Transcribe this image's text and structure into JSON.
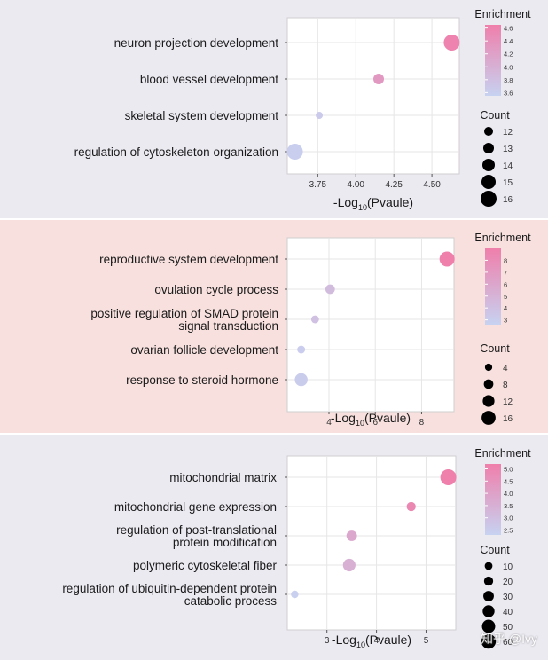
{
  "chart_data": [
    {
      "type": "scatter",
      "xlabel_prefix": "-Log",
      "xlabel_sub": "10",
      "xlabel_suffix": "(Pvaule)",
      "xlim": [
        3.55,
        4.68
      ],
      "xticks": [
        3.75,
        4.0,
        4.25,
        4.5
      ],
      "xtick_labels": [
        "3.75",
        "4.00",
        "4.25",
        "4.50"
      ],
      "terms": [
        [
          "neuron projection development"
        ],
        [
          "blood vessel development"
        ],
        [
          "skeletal system development"
        ],
        [
          "regulation of cytoskeleton organization"
        ]
      ],
      "points": [
        {
          "x": 4.63,
          "enrichment": 4.6,
          "count": 16
        },
        {
          "x": 4.15,
          "enrichment": 4.3,
          "count": 13
        },
        {
          "x": 3.76,
          "enrichment": 3.65,
          "count": 11
        },
        {
          "x": 3.6,
          "enrichment": 3.6,
          "count": 16
        }
      ],
      "legend": {
        "color_title": "Enrichment",
        "color_min": 3.55,
        "color_max": 4.65,
        "color_ticks": [
          3.6,
          3.8,
          4.0,
          4.2,
          4.4,
          4.6
        ],
        "color_tick_labels": [
          "3.6",
          "3.8",
          "4.0",
          "4.2",
          "4.4",
          "4.6"
        ],
        "size_title": "Count",
        "size_values": [
          12,
          13,
          14,
          15,
          16
        ],
        "size_labels": [
          "12",
          "13",
          "14",
          "15",
          "16"
        ],
        "size_min": 11,
        "size_max": 16
      }
    },
    {
      "type": "scatter",
      "xlabel_prefix": "-Log",
      "xlabel_sub": "10",
      "xlabel_suffix": "(Pvaule)",
      "xlim": [
        2.2,
        9.4
      ],
      "xticks": [
        4,
        6,
        8
      ],
      "xtick_labels": [
        "4",
        "6",
        "8"
      ],
      "terms": [
        [
          "reproductive system development"
        ],
        [
          "ovulation cycle process"
        ],
        [
          "positive regulation of SMAD protein",
          "signal transduction"
        ],
        [
          "ovarian follicle development"
        ],
        [
          "response to steroid hormone"
        ]
      ],
      "points": [
        {
          "x": 9.1,
          "enrichment": 9,
          "count": 18
        },
        {
          "x": 4.05,
          "enrichment": 4.3,
          "count": 8
        },
        {
          "x": 3.4,
          "enrichment": 4.0,
          "count": 5
        },
        {
          "x": 2.8,
          "enrichment": 3.0,
          "count": 5
        },
        {
          "x": 2.8,
          "enrichment": 3.1,
          "count": 14
        }
      ],
      "legend": {
        "color_title": "Enrichment",
        "color_min": 2.6,
        "color_max": 9.0,
        "color_ticks": [
          3,
          4,
          5,
          6,
          7,
          8
        ],
        "color_tick_labels": [
          "3",
          "4",
          "5",
          "6",
          "7",
          "8"
        ],
        "size_title": "Count",
        "size_values": [
          4,
          8,
          12,
          16
        ],
        "size_labels": [
          "4",
          "8",
          "12",
          "16"
        ],
        "size_min": 2,
        "size_max": 18
      }
    },
    {
      "type": "scatter",
      "xlabel_prefix": "-Log",
      "xlabel_sub": "10",
      "xlabel_suffix": "(Pvaule)",
      "xlim": [
        2.2,
        5.6
      ],
      "xticks": [
        3,
        4,
        5
      ],
      "xtick_labels": [
        "3",
        "4",
        "5"
      ],
      "terms": [
        [
          "mitochondrial matrix"
        ],
        [
          "mitochondrial gene expression"
        ],
        [
          "regulation of post-translational",
          "protein modification"
        ],
        [
          "polymeric cytoskeletal fiber"
        ],
        [
          "regulation of ubiquitin-dependent protein",
          "catabolic process"
        ]
      ],
      "points": [
        {
          "x": 5.45,
          "enrichment": 5.2,
          "count": 70
        },
        {
          "x": 4.7,
          "enrichment": 4.9,
          "count": 20
        },
        {
          "x": 3.5,
          "enrichment": 3.8,
          "count": 30
        },
        {
          "x": 3.45,
          "enrichment": 3.5,
          "count": 45
        },
        {
          "x": 2.35,
          "enrichment": 2.4,
          "count": 8
        }
      ],
      "legend": {
        "color_title": "Enrichment",
        "color_min": 2.3,
        "color_max": 5.2,
        "color_ticks": [
          2.5,
          3.0,
          3.5,
          4.0,
          4.5,
          5.0
        ],
        "color_tick_labels": [
          "2.5",
          "3.0",
          "3.5",
          "4.0",
          "4.5",
          "5.0"
        ],
        "size_title": "Count",
        "size_values": [
          10,
          20,
          30,
          40,
          50,
          60
        ],
        "size_labels": [
          "10",
          "20",
          "30",
          "40",
          "50",
          "60"
        ],
        "size_min": 5,
        "size_max": 70
      }
    }
  ],
  "colors": {
    "low": "#c7d2f1",
    "high": "#ef7fab",
    "background_1": "#eceaf1",
    "background_2": "#f7e0dd",
    "background_3": "#eceaf1"
  },
  "watermark": "知乎 @Ivy"
}
